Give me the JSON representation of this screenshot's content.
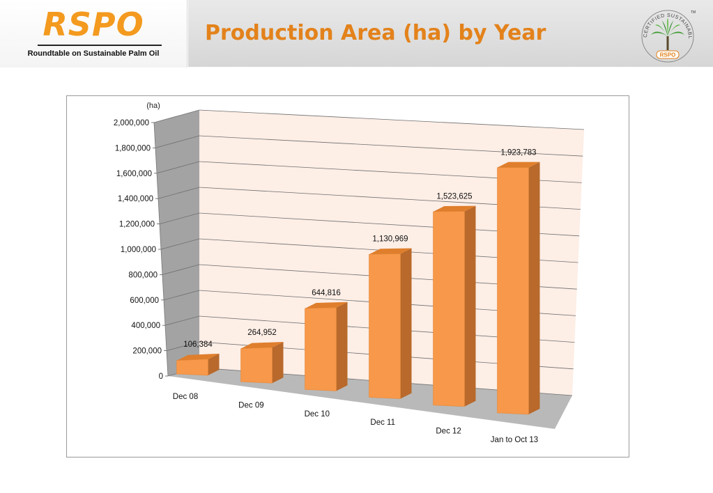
{
  "header": {
    "logo_text": "RSPO",
    "logo_subtitle": "Roundtable on Sustainable Palm Oil",
    "title": "Production Area (ha) by Year",
    "seal": {
      "top_text": "CERTIFIED SUSTAINABLE PALM OIL",
      "bottom_text": "RSPO",
      "tm": "TM"
    }
  },
  "colors": {
    "accent": "#f39a1f",
    "title": "#e3821b",
    "bar_front": "#f7984a",
    "bar_side": "#b8692b",
    "bar_top": "#df7e2c",
    "back_wall": "#fdeee6",
    "side_wall": "#a3a3a3",
    "floor": "#b9b9b9"
  },
  "chart_data": {
    "type": "bar",
    "unit_label": "(ha)",
    "categories": [
      "Dec 08",
      "Dec 09",
      "Dec 10",
      "Dec 11",
      "Dec 12",
      "Jan to Oct 13"
    ],
    "values": [
      106384,
      264952,
      644816,
      1130969,
      1523625,
      1923783
    ],
    "value_labels": [
      "106,384",
      "264,952",
      "644,816",
      "1,130,969",
      "1,523,625",
      "1,923,783"
    ],
    "ylim": [
      0,
      2000000
    ],
    "yticks": [
      "0",
      "200,000",
      "400,000",
      "600,000",
      "800,000",
      "1,000,000",
      "1,200,000",
      "1,400,000",
      "1,600,000",
      "1,800,000",
      "2,000,000"
    ],
    "grid": true,
    "legend": "none",
    "style": "3d-column"
  }
}
